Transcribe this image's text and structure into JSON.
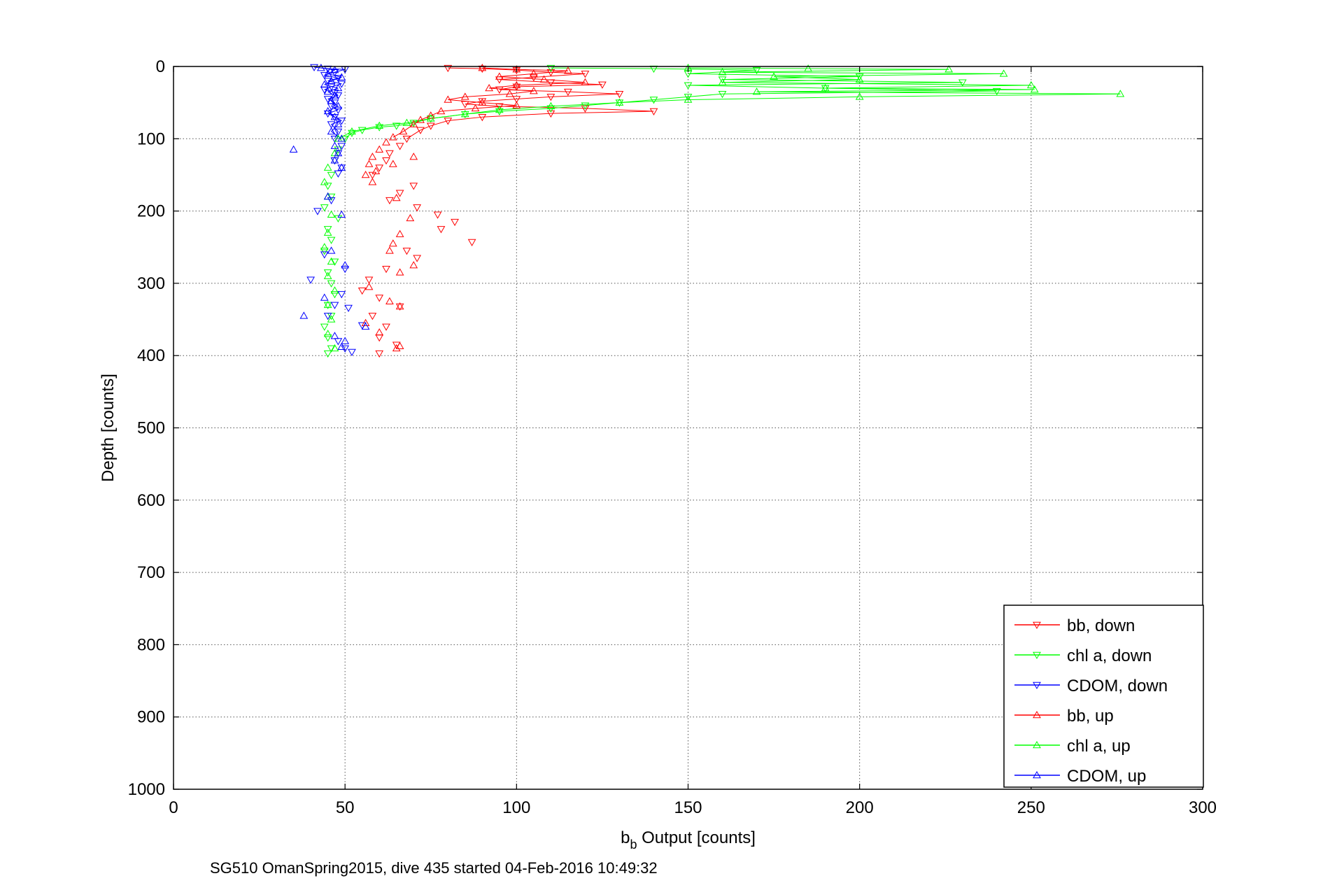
{
  "chart_data": {
    "type": "scatter",
    "xlabel_main": "b",
    "xlabel_sub": "b",
    "xlabel_rest": " Output [counts]",
    "ylabel": "Depth [counts]",
    "footnote": "SG510 OmanSpring2015, dive 435 started 04-Feb-2016 10:49:32",
    "xlim": [
      0,
      300
    ],
    "ylim": [
      0,
      1000
    ],
    "y_reversed": true,
    "grid": true,
    "legend_position": "bottom-right",
    "xticks": [
      "0",
      "50",
      "100",
      "150",
      "200",
      "250",
      "300"
    ],
    "yticks": [
      "0",
      "100",
      "200",
      "300",
      "400",
      "500",
      "600",
      "700",
      "800",
      "900",
      "1000"
    ],
    "series": [
      {
        "name": "bb, down",
        "color": "#ff0000",
        "marker": "triangle-down",
        "lines": true,
        "points": [
          [
            80,
            2
          ],
          [
            90,
            3
          ],
          [
            100,
            5
          ],
          [
            110,
            8
          ],
          [
            120,
            10
          ],
          [
            105,
            15
          ],
          [
            95,
            18
          ],
          [
            110,
            22
          ],
          [
            125,
            25
          ],
          [
            100,
            28
          ],
          [
            95,
            32
          ],
          [
            115,
            35
          ],
          [
            130,
            38
          ],
          [
            110,
            42
          ],
          [
            100,
            45
          ],
          [
            90,
            48
          ],
          [
            85,
            52
          ],
          [
            95,
            55
          ],
          [
            120,
            58
          ],
          [
            140,
            62
          ],
          [
            110,
            65
          ],
          [
            90,
            70
          ],
          [
            80,
            75
          ],
          [
            75,
            82
          ],
          [
            72,
            88
          ],
          [
            68,
            100
          ],
          [
            66,
            110
          ],
          [
            63,
            120
          ],
          [
            62,
            130
          ],
          [
            60,
            140
          ],
          [
            58,
            150
          ],
          [
            70,
            165
          ],
          [
            66,
            175
          ],
          [
            63,
            185
          ],
          [
            71,
            195
          ],
          [
            77,
            205
          ],
          [
            82,
            215
          ],
          [
            78,
            225
          ],
          [
            87,
            243
          ],
          [
            68,
            255
          ],
          [
            71,
            265
          ],
          [
            62,
            280
          ],
          [
            57,
            295
          ],
          [
            55,
            310
          ],
          [
            60,
            320
          ],
          [
            66,
            332
          ],
          [
            58,
            345
          ],
          [
            62,
            360
          ],
          [
            60,
            375
          ],
          [
            65,
            385
          ],
          [
            60,
            397
          ]
        ]
      },
      {
        "name": "chl a, down",
        "color": "#00ff00",
        "marker": "triangle-down",
        "lines": true,
        "points": [
          [
            110,
            2
          ],
          [
            140,
            3
          ],
          [
            170,
            5
          ],
          [
            150,
            10
          ],
          [
            200,
            14
          ],
          [
            160,
            18
          ],
          [
            230,
            22
          ],
          [
            150,
            26
          ],
          [
            190,
            30
          ],
          [
            240,
            34
          ],
          [
            160,
            38
          ],
          [
            150,
            42
          ],
          [
            140,
            46
          ],
          [
            130,
            50
          ],
          [
            120,
            54
          ],
          [
            110,
            58
          ],
          [
            95,
            62
          ],
          [
            85,
            66
          ],
          [
            75,
            72
          ],
          [
            70,
            78
          ],
          [
            65,
            82
          ],
          [
            60,
            84
          ],
          [
            55,
            88
          ],
          [
            52,
            92
          ],
          [
            50,
            100
          ],
          [
            48,
            115
          ],
          [
            47,
            130
          ],
          [
            46,
            150
          ],
          [
            45,
            165
          ],
          [
            46,
            180
          ],
          [
            44,
            195
          ],
          [
            48,
            210
          ],
          [
            45,
            225
          ],
          [
            46,
            240
          ],
          [
            44,
            255
          ],
          [
            47,
            270
          ],
          [
            45,
            285
          ],
          [
            46,
            300
          ],
          [
            47,
            315
          ],
          [
            45,
            330
          ],
          [
            46,
            345
          ],
          [
            44,
            360
          ],
          [
            45,
            375
          ],
          [
            46,
            390
          ],
          [
            45,
            397
          ]
        ]
      },
      {
        "name": "CDOM, down",
        "color": "#0000ff",
        "marker": "triangle-down",
        "lines": true,
        "points": [
          [
            41,
            1
          ],
          [
            45,
            3
          ],
          [
            50,
            4
          ],
          [
            47,
            8
          ],
          [
            44,
            12
          ],
          [
            48,
            16
          ],
          [
            45,
            20
          ],
          [
            49,
            24
          ],
          [
            46,
            28
          ],
          [
            44,
            32
          ],
          [
            47,
            36
          ],
          [
            48,
            40
          ],
          [
            45,
            45
          ],
          [
            47,
            50
          ],
          [
            46,
            55
          ],
          [
            48,
            60
          ],
          [
            45,
            65
          ],
          [
            47,
            70
          ],
          [
            49,
            75
          ],
          [
            46,
            80
          ],
          [
            48,
            90
          ],
          [
            47,
            100
          ],
          [
            49,
            110
          ],
          [
            48,
            120
          ],
          [
            47,
            130
          ],
          [
            49,
            140
          ],
          [
            48,
            148
          ],
          [
            42,
            200
          ],
          [
            46,
            185
          ],
          [
            44,
            260
          ],
          [
            40,
            295
          ],
          [
            50,
            280
          ],
          [
            49,
            315
          ],
          [
            47,
            330
          ],
          [
            51,
            334
          ],
          [
            45,
            345
          ],
          [
            55,
            358
          ],
          [
            48,
            380
          ],
          [
            50,
            390
          ],
          [
            52,
            395
          ]
        ]
      },
      {
        "name": "bb, up",
        "color": "#ff0000",
        "marker": "triangle-up",
        "lines": true,
        "points": [
          [
            90,
            2
          ],
          [
            100,
            4
          ],
          [
            115,
            6
          ],
          [
            105,
            10
          ],
          [
            95,
            14
          ],
          [
            108,
            18
          ],
          [
            120,
            22
          ],
          [
            100,
            26
          ],
          [
            92,
            30
          ],
          [
            105,
            34
          ],
          [
            98,
            38
          ],
          [
            85,
            42
          ],
          [
            80,
            46
          ],
          [
            90,
            50
          ],
          [
            100,
            54
          ],
          [
            88,
            58
          ],
          [
            78,
            62
          ],
          [
            75,
            68
          ],
          [
            72,
            74
          ],
          [
            70,
            80
          ],
          [
            67,
            90
          ],
          [
            64,
            98
          ],
          [
            62,
            105
          ],
          [
            60,
            115
          ],
          [
            58,
            125
          ],
          [
            57,
            135
          ],
          [
            59,
            145
          ],
          [
            56,
            150
          ],
          [
            64,
            135
          ],
          [
            70,
            125
          ],
          [
            58,
            160
          ],
          [
            65,
            182
          ],
          [
            69,
            210
          ],
          [
            66,
            232
          ],
          [
            64,
            245
          ],
          [
            63,
            255
          ],
          [
            70,
            275
          ],
          [
            66,
            285
          ],
          [
            57,
            305
          ],
          [
            63,
            325
          ],
          [
            66,
            332
          ],
          [
            56,
            355
          ],
          [
            60,
            368
          ],
          [
            65,
            390
          ],
          [
            66,
            387
          ]
        ]
      },
      {
        "name": "chl a, up",
        "color": "#00ff00",
        "marker": "triangle-up",
        "lines": true,
        "points": [
          [
            150,
            2
          ],
          [
            185,
            3
          ],
          [
            226,
            4
          ],
          [
            160,
            8
          ],
          [
            242,
            10
          ],
          [
            175,
            14
          ],
          [
            200,
            18
          ],
          [
            160,
            22
          ],
          [
            250,
            26
          ],
          [
            190,
            30
          ],
          [
            251,
            32
          ],
          [
            170,
            35
          ],
          [
            276,
            38
          ],
          [
            200,
            42
          ],
          [
            150,
            46
          ],
          [
            130,
            50
          ],
          [
            110,
            55
          ],
          [
            95,
            60
          ],
          [
            85,
            66
          ],
          [
            75,
            72
          ],
          [
            68,
            78
          ],
          [
            60,
            82
          ],
          [
            52,
            90
          ],
          [
            48,
            100
          ],
          [
            47,
            120
          ],
          [
            45,
            140
          ],
          [
            44,
            160
          ],
          [
            45,
            180
          ],
          [
            46,
            205
          ],
          [
            45,
            230
          ],
          [
            44,
            250
          ],
          [
            46,
            270
          ],
          [
            45,
            290
          ],
          [
            47,
            310
          ],
          [
            45,
            330
          ],
          [
            46,
            350
          ],
          [
            45,
            370
          ],
          [
            47,
            390
          ]
        ]
      },
      {
        "name": "CDOM, up",
        "color": "#0000ff",
        "marker": "triangle-up",
        "lines": true,
        "points": [
          [
            43,
            2
          ],
          [
            47,
            5
          ],
          [
            45,
            10
          ],
          [
            49,
            15
          ],
          [
            46,
            20
          ],
          [
            44,
            25
          ],
          [
            48,
            30
          ],
          [
            45,
            35
          ],
          [
            47,
            40
          ],
          [
            46,
            48
          ],
          [
            48,
            55
          ],
          [
            45,
            62
          ],
          [
            47,
            70
          ],
          [
            48,
            80
          ],
          [
            46,
            90
          ],
          [
            49,
            100
          ],
          [
            47,
            110
          ],
          [
            48,
            120
          ],
          [
            47,
            130
          ],
          [
            49,
            140
          ],
          [
            35,
            115
          ],
          [
            45,
            180
          ],
          [
            49,
            205
          ],
          [
            46,
            255
          ],
          [
            50,
            275
          ],
          [
            44,
            320
          ],
          [
            56,
            360
          ],
          [
            38,
            345
          ],
          [
            47,
            373
          ],
          [
            50,
            380
          ],
          [
            49,
            388
          ]
        ]
      }
    ]
  }
}
